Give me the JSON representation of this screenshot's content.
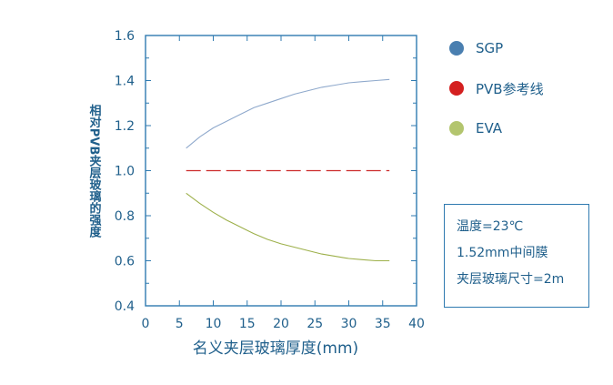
{
  "chart_data": {
    "type": "line",
    "title": "",
    "xlabel": "名义夹层玻璃厚度(mm)",
    "ylabel": "相对PVB夹层玻璃的强度",
    "xlim": [
      0,
      40
    ],
    "ylim": [
      0.4,
      1.6
    ],
    "xticks": [
      0,
      5,
      10,
      15,
      20,
      25,
      30,
      35,
      40
    ],
    "yticks": [
      0.4,
      0.6,
      0.8,
      1.0,
      1.2,
      1.4,
      1.6
    ],
    "grid": false,
    "legend_position": "right",
    "series": [
      {
        "name": "SGP",
        "color": "#8fa9cc",
        "marker_color": "#4a7fb0",
        "style": "solid",
        "x": [
          6,
          8,
          10,
          12,
          14,
          16,
          18,
          20,
          22,
          24,
          26,
          28,
          30,
          32,
          34,
          36
        ],
        "y": [
          1.1,
          1.15,
          1.19,
          1.22,
          1.25,
          1.28,
          1.3,
          1.32,
          1.34,
          1.355,
          1.37,
          1.38,
          1.39,
          1.395,
          1.4,
          1.405
        ]
      },
      {
        "name": "PVB参考线",
        "color": "#cc2b2b",
        "marker_color": "#d42020",
        "style": "dashed",
        "x": [
          6,
          36
        ],
        "y": [
          1.0,
          1.0
        ]
      },
      {
        "name": "EVA",
        "color": "#9db04a",
        "marker_color": "#b3c56e",
        "style": "solid",
        "x": [
          6,
          8,
          10,
          12,
          14,
          16,
          18,
          20,
          22,
          24,
          26,
          28,
          30,
          32,
          34,
          36
        ],
        "y": [
          0.9,
          0.855,
          0.815,
          0.78,
          0.75,
          0.72,
          0.695,
          0.675,
          0.66,
          0.645,
          0.63,
          0.62,
          0.61,
          0.605,
          0.6,
          0.6
        ]
      }
    ]
  },
  "notes": [
    "温度=23℃",
    "1.52mm中间膜",
    "夹层玻璃尺寸=2m"
  ]
}
